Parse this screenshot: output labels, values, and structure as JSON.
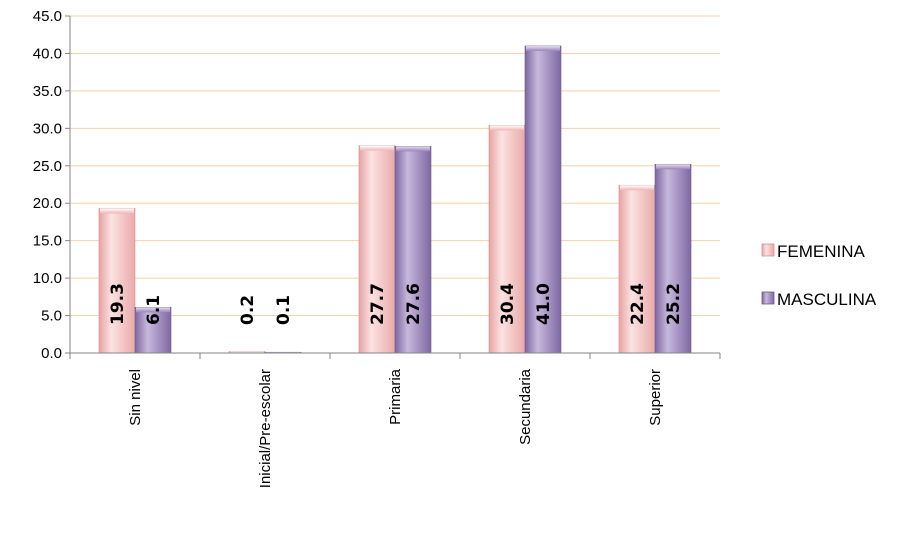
{
  "chart_data": {
    "type": "bar",
    "categories": [
      "Sin nivel",
      "Inicial/Pre-escolar",
      "Primaria",
      "Secundaria",
      "Superior"
    ],
    "series": [
      {
        "name": "FEMENINA",
        "values": [
          19.3,
          0.2,
          27.7,
          30.4,
          22.4
        ],
        "labels": [
          "19.3",
          "0.2",
          "27.7",
          "30.4",
          "22.4"
        ]
      },
      {
        "name": "MASCULINA",
        "values": [
          6.1,
          0.1,
          27.6,
          41.0,
          25.2
        ],
        "labels": [
          "6.1",
          "0.1",
          "27.6",
          "41.0",
          "25.2"
        ]
      }
    ],
    "yticks": [
      "0.0",
      "5.0",
      "10.0",
      "15.0",
      "20.0",
      "25.0",
      "30.0",
      "35.0",
      "40.0",
      "45.0"
    ],
    "ylim": [
      0,
      45
    ],
    "grid": true,
    "legend": "right",
    "colors": {
      "FEMENINA": "#f2b6b6",
      "MASCULINA": "#9a84b8",
      "grid": "#f6d3a8"
    }
  }
}
